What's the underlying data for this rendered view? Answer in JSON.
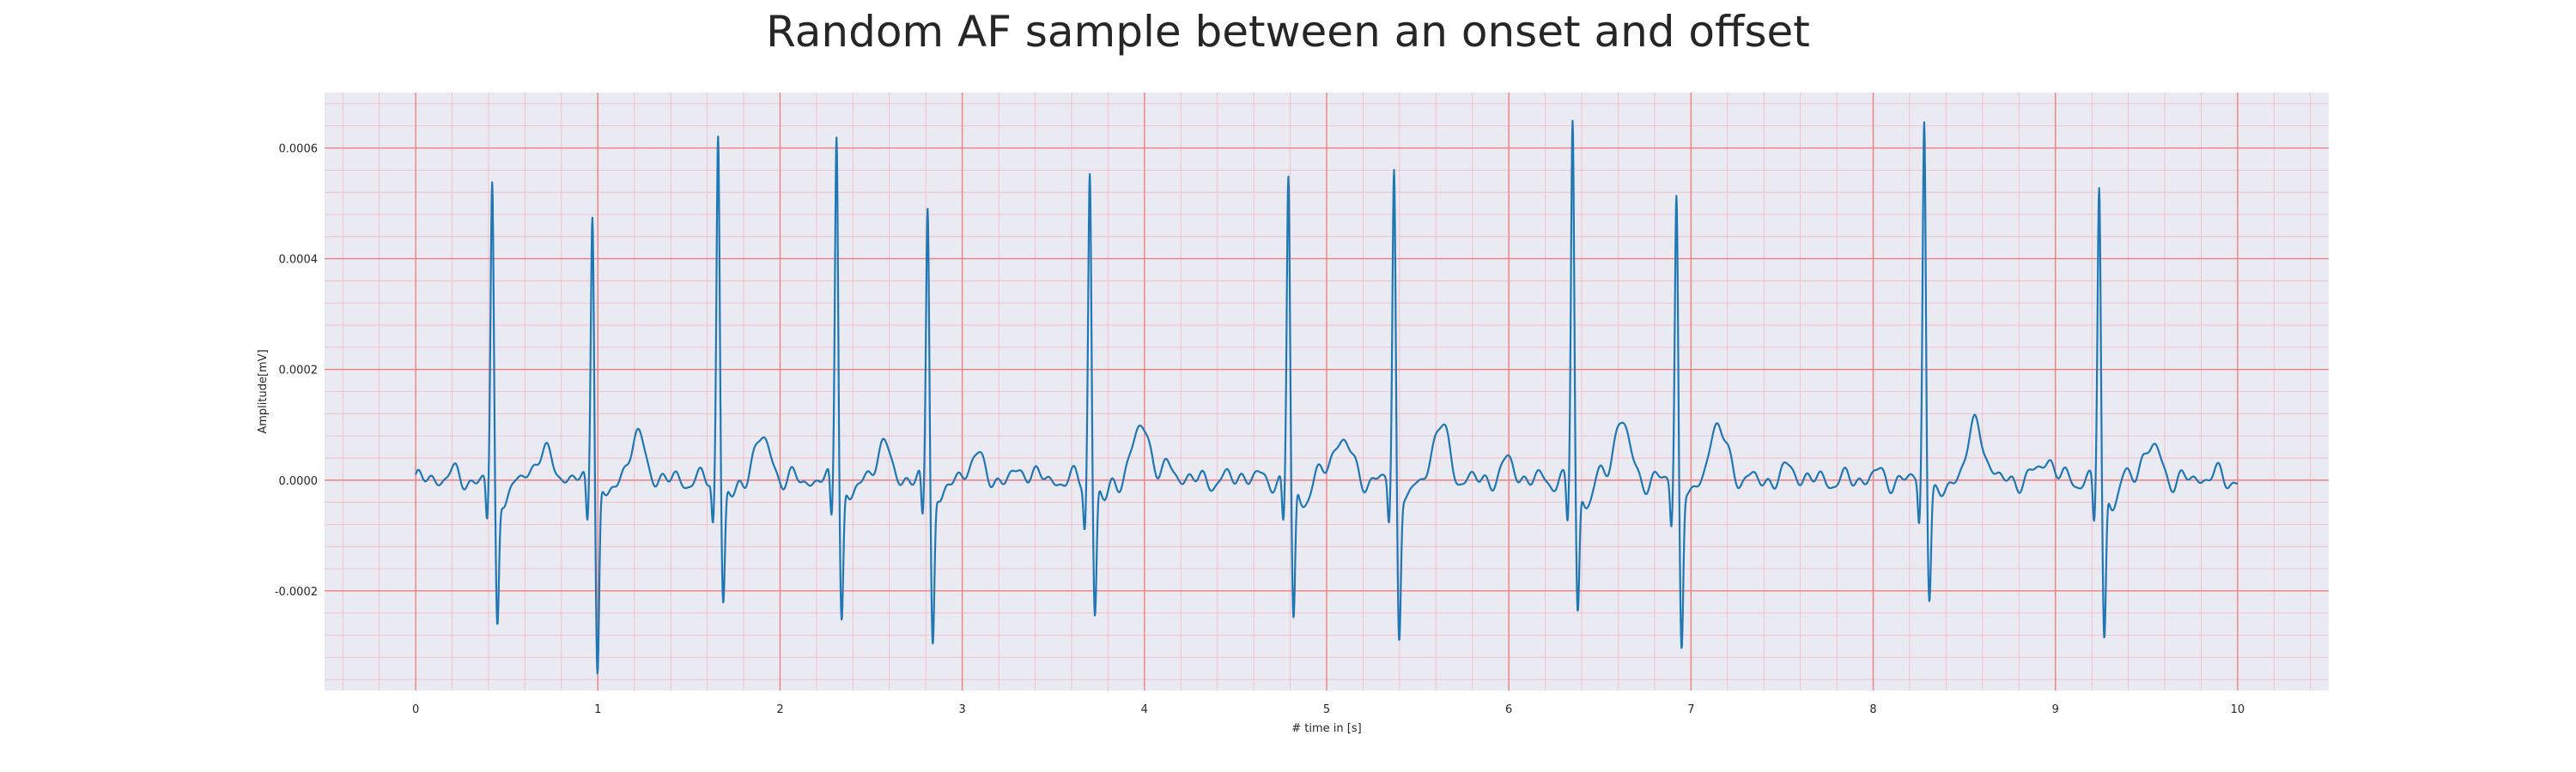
{
  "chart_data": {
    "type": "line",
    "title": "Random AF sample between an onset and offset",
    "xlabel": "# time in [s]",
    "ylabel": "Amplitude[mV]",
    "xlim": [
      -0.5,
      10.5
    ],
    "ylim": [
      -0.00038,
      0.0007
    ],
    "x_ticks": [
      0,
      1,
      2,
      3,
      4,
      5,
      6,
      7,
      8,
      9,
      10
    ],
    "x_tick_labels": [
      "0",
      "1",
      "2",
      "3",
      "4",
      "5",
      "6",
      "7",
      "8",
      "9",
      "10"
    ],
    "y_ticks": [
      -0.0002,
      0.0,
      0.0002,
      0.0004,
      0.0006
    ],
    "y_tick_labels": [
      "-0.0002",
      "0.0000",
      "0.0002",
      "0.0004",
      "0.0006"
    ],
    "grid": true,
    "colors": {
      "background": "#eaeaf2",
      "major_grid": "#f08080",
      "minor_grid": "#f4b8c0",
      "line": "#1f77b4"
    },
    "r_peaks": [
      {
        "t": 0.42,
        "amp": 0.00053,
        "s": -0.00025
      },
      {
        "t": 0.97,
        "amp": 0.0005,
        "s": -0.00034
      },
      {
        "t": 1.66,
        "amp": 0.00063,
        "s": -0.00021
      },
      {
        "t": 2.31,
        "amp": 0.00064,
        "s": -0.00024
      },
      {
        "t": 2.81,
        "amp": 0.0005,
        "s": -0.00028
      },
      {
        "t": 3.7,
        "amp": 0.00056,
        "s": -0.00024
      },
      {
        "t": 4.79,
        "amp": 0.00055,
        "s": -0.00026
      },
      {
        "t": 5.37,
        "amp": 0.00056,
        "s": -0.00027
      },
      {
        "t": 6.35,
        "amp": 0.00065,
        "s": -0.00024
      },
      {
        "t": 6.92,
        "amp": 0.00052,
        "s": -0.00029
      },
      {
        "t": 8.28,
        "amp": 0.00066,
        "s": -0.0002
      },
      {
        "t": 9.24,
        "amp": 0.00053,
        "s": -0.00029
      }
    ],
    "baseline_waves": [
      {
        "t": 0.18,
        "amp": 1e-05
      },
      {
        "t": 0.75,
        "amp": 2e-05
      },
      {
        "t": 1.2,
        "amp": 4e-05
      },
      {
        "t": 1.88,
        "amp": 4e-05
      },
      {
        "t": 2.55,
        "amp": 2e-05
      },
      {
        "t": 3.35,
        "amp": 2e-05
      },
      {
        "t": 4.0,
        "amp": 7e-05
      },
      {
        "t": 4.15,
        "amp": 2e-05
      },
      {
        "t": 4.55,
        "amp": 1e-05
      },
      {
        "t": 5.1,
        "amp": 5e-05
      },
      {
        "t": 5.62,
        "amp": 6e-05
      },
      {
        "t": 6.0,
        "amp": 3e-05
      },
      {
        "t": 6.62,
        "amp": 7e-05
      },
      {
        "t": 7.13,
        "amp": 7e-05
      },
      {
        "t": 7.55,
        "amp": 2e-05
      },
      {
        "t": 8.0,
        "amp": 1e-05
      },
      {
        "t": 8.58,
        "amp": 7e-05
      },
      {
        "t": 8.95,
        "amp": 4e-05
      },
      {
        "t": 9.55,
        "amp": 3e-05
      },
      {
        "t": 9.85,
        "amp": 1e-05
      }
    ],
    "x_end": 10.0
  }
}
